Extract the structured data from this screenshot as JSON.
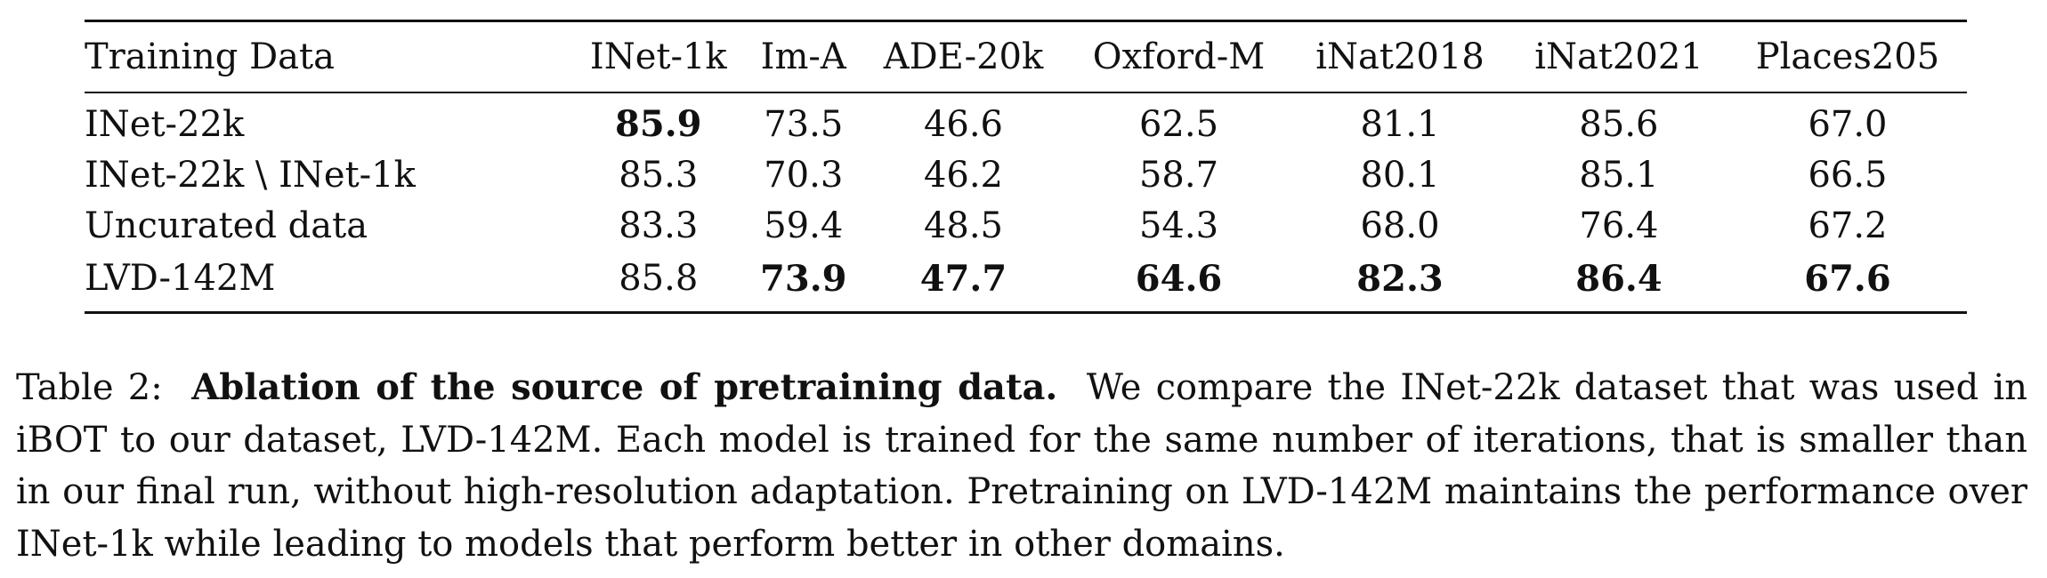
{
  "table": {
    "headers": [
      "Training Data",
      "INet-1k",
      "Im-A",
      "ADE-20k",
      "Oxford-M",
      "iNat2018",
      "iNat2021",
      "Places205"
    ],
    "rows": [
      {
        "label": "INet-22k",
        "values": [
          "85.9",
          "73.5",
          "46.6",
          "62.5",
          "81.1",
          "85.6",
          "67.0"
        ],
        "bold": [
          true,
          false,
          false,
          false,
          false,
          false,
          false
        ]
      },
      {
        "label": "INet-22k \\ INet-1k",
        "values": [
          "85.3",
          "70.3",
          "46.2",
          "58.7",
          "80.1",
          "85.1",
          "66.5"
        ],
        "bold": [
          false,
          false,
          false,
          false,
          false,
          false,
          false
        ]
      },
      {
        "label": "Uncurated data",
        "values": [
          "83.3",
          "59.4",
          "48.5",
          "54.3",
          "68.0",
          "76.4",
          "67.2"
        ],
        "bold": [
          false,
          false,
          false,
          false,
          false,
          false,
          false
        ]
      },
      {
        "label": "LVD-142M",
        "values": [
          "85.8",
          "73.9",
          "47.7",
          "64.6",
          "82.3",
          "86.4",
          "67.6"
        ],
        "bold": [
          false,
          true,
          true,
          true,
          true,
          true,
          true
        ]
      }
    ]
  },
  "caption": {
    "label": "Table 2:",
    "title": "Ablation of the source of pretraining data.",
    "text": "We compare the INet-22k dataset that was used in iBOT to our dataset, LVD-142M. Each model is trained for the same number of iterations, that is smaller than in our final run, without high-resolution adaptation. Pretraining on LVD-142M maintains the performance over INet-1k while leading to models that perform better in other domains."
  }
}
